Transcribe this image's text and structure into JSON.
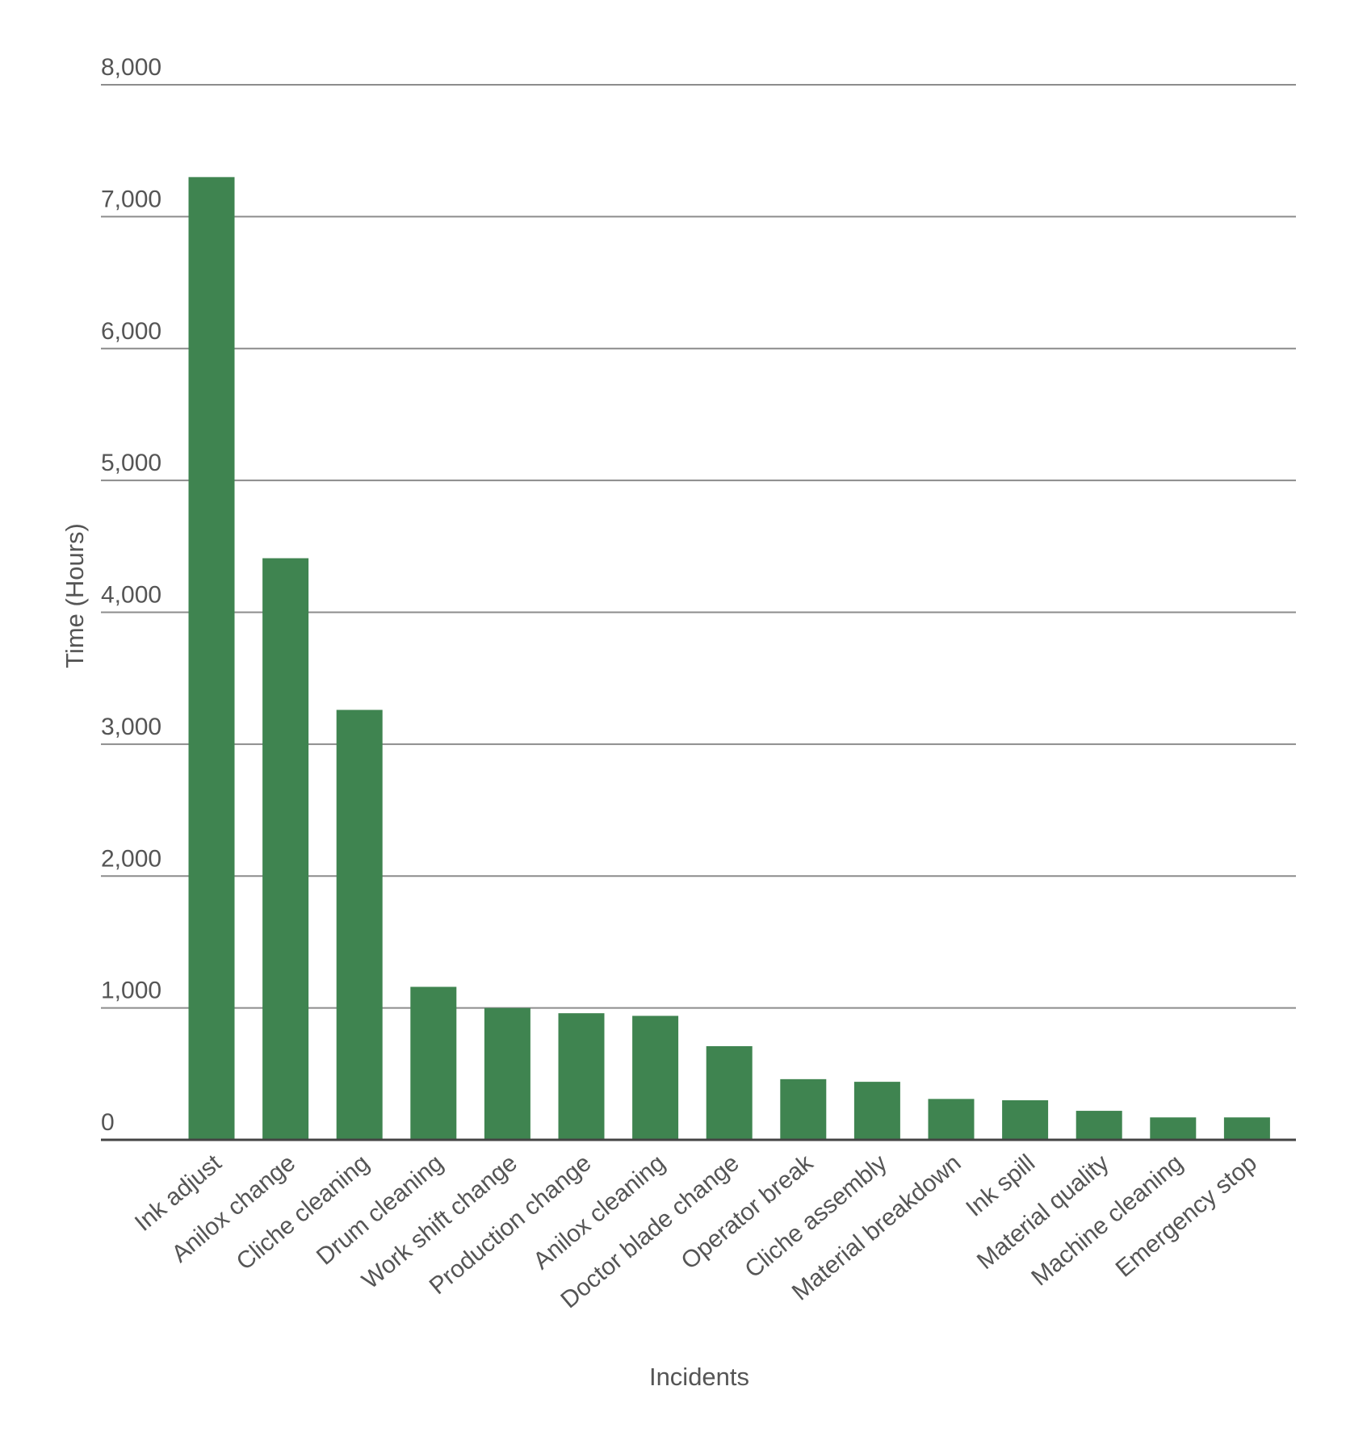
{
  "chart_data": {
    "type": "bar",
    "title": "",
    "xlabel": "Incidents",
    "ylabel": "Time (Hours)",
    "ylim": [
      0,
      8000
    ],
    "yticks": [
      0,
      1000,
      2000,
      3000,
      4000,
      5000,
      6000,
      7000,
      8000
    ],
    "ytick_labels": [
      "0",
      "1,000",
      "2,000",
      "3,000",
      "4,000",
      "5,000",
      "6,000",
      "7,000",
      "8,000"
    ],
    "grid": true,
    "legend": "none",
    "bar_color": "#3f8450",
    "categories": [
      "Ink adjust",
      "Anilox change",
      "Cliche cleaning",
      "Drum cleaning",
      "Work shift change",
      "Production change",
      "Anilox cleaning",
      "Doctor blade change",
      "Operator break",
      "Cliche assembly",
      "Material breakdown",
      "Ink spill",
      "Material quality",
      "Machine cleaning",
      "Emergency stop"
    ],
    "values": [
      7300,
      4410,
      3260,
      1160,
      1000,
      960,
      940,
      710,
      460,
      440,
      310,
      300,
      220,
      170,
      170
    ]
  }
}
